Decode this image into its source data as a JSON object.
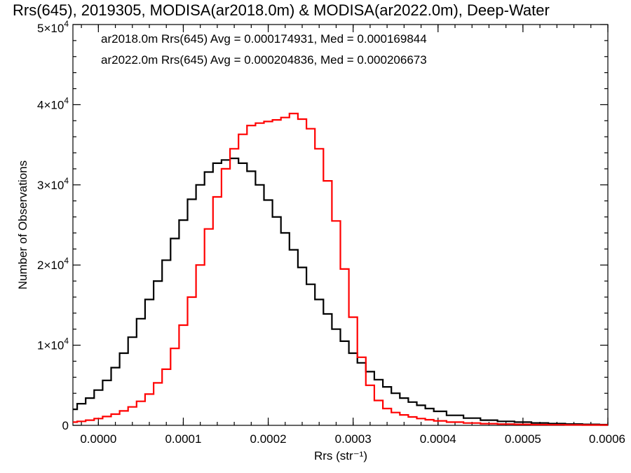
{
  "chart_data": {
    "type": "line",
    "title": "Rrs(645), 2019305, MODISA(ar2018.0m) & MODISA(ar2022.0m), Deep-Water",
    "xlabel": "Rrs (str⁻¹)",
    "ylabel": "Number of Observations",
    "xlim": [
      -3e-05,
      0.0006
    ],
    "ylim": [
      0,
      50000
    ],
    "grid": false,
    "legend_position": "top-left",
    "x_ticks": [
      {
        "value": 0.0,
        "label": "0.0000"
      },
      {
        "value": 0.0001,
        "label": "0.0001"
      },
      {
        "value": 0.0002,
        "label": "0.0002"
      },
      {
        "value": 0.0003,
        "label": "0.0003"
      },
      {
        "value": 0.0004,
        "label": "0.0004"
      },
      {
        "value": 0.0005,
        "label": "0.0005"
      },
      {
        "value": 0.0006,
        "label": "0.0006"
      }
    ],
    "y_ticks": [
      {
        "value": 0,
        "base": "0",
        "exp": ""
      },
      {
        "value": 10000,
        "base": "1×10",
        "exp": "4"
      },
      {
        "value": 20000,
        "base": "2×10",
        "exp": "4"
      },
      {
        "value": 30000,
        "base": "3×10",
        "exp": "4"
      },
      {
        "value": 40000,
        "base": "4×10",
        "exp": "4"
      },
      {
        "value": 50000,
        "base": "5×10",
        "exp": "4"
      }
    ],
    "series": [
      {
        "name": "ar2018.0m Rrs(645) Avg = 0.000174931, Med = 0.000169844",
        "color": "#000000",
        "points": [
          [
            -3e-05,
            2000
          ],
          [
            -2e-05,
            2700
          ],
          [
            -1e-05,
            3400
          ],
          [
            0.0,
            4400
          ],
          [
            1e-05,
            5600
          ],
          [
            2e-05,
            7200
          ],
          [
            3e-05,
            9000
          ],
          [
            4e-05,
            11000
          ],
          [
            5e-05,
            13300
          ],
          [
            6e-05,
            15700
          ],
          [
            7e-05,
            18000
          ],
          [
            8e-05,
            20600
          ],
          [
            9e-05,
            23300
          ],
          [
            0.0001,
            25600
          ],
          [
            0.00011,
            28200
          ],
          [
            0.00012,
            30000
          ],
          [
            0.00013,
            31600
          ],
          [
            0.00014,
            32700
          ],
          [
            0.00015,
            33100
          ],
          [
            0.00016,
            33300
          ],
          [
            0.00017,
            32700
          ],
          [
            0.00018,
            31700
          ],
          [
            0.00019,
            30000
          ],
          [
            0.0002,
            28100
          ],
          [
            0.00021,
            26000
          ],
          [
            0.00022,
            24000
          ],
          [
            0.00023,
            21900
          ],
          [
            0.00024,
            19700
          ],
          [
            0.00025,
            17600
          ],
          [
            0.00026,
            15700
          ],
          [
            0.00027,
            13900
          ],
          [
            0.00028,
            12000
          ],
          [
            0.00029,
            10500
          ],
          [
            0.0003,
            9000
          ],
          [
            0.00031,
            7800
          ],
          [
            0.00032,
            6700
          ],
          [
            0.00033,
            5700
          ],
          [
            0.00034,
            4800
          ],
          [
            0.00035,
            4000
          ],
          [
            0.00036,
            3400
          ],
          [
            0.00037,
            2900
          ],
          [
            0.00038,
            2500
          ],
          [
            0.00039,
            2100
          ],
          [
            0.0004,
            1750
          ],
          [
            0.00042,
            1250
          ],
          [
            0.00044,
            900
          ],
          [
            0.00046,
            650
          ],
          [
            0.00048,
            500
          ],
          [
            0.0005,
            400
          ],
          [
            0.00052,
            300
          ],
          [
            0.00054,
            220
          ],
          [
            0.00056,
            170
          ],
          [
            0.00058,
            120
          ],
          [
            0.0006,
            90
          ]
        ]
      },
      {
        "name": "ar2022.0m Rrs(645) Avg = 0.000204836, Med = 0.000206673",
        "color": "#ff0000",
        "points": [
          [
            -3e-05,
            400
          ],
          [
            -2e-05,
            500
          ],
          [
            -1e-05,
            650
          ],
          [
            0.0,
            850
          ],
          [
            1e-05,
            1100
          ],
          [
            2e-05,
            1400
          ],
          [
            3e-05,
            1800
          ],
          [
            4e-05,
            2300
          ],
          [
            5e-05,
            3000
          ],
          [
            6e-05,
            3900
          ],
          [
            7e-05,
            5300
          ],
          [
            8e-05,
            7000
          ],
          [
            9e-05,
            9600
          ],
          [
            0.0001,
            12500
          ],
          [
            0.00011,
            16000
          ],
          [
            0.00012,
            20000
          ],
          [
            0.00013,
            24500
          ],
          [
            0.00014,
            28500
          ],
          [
            0.00015,
            32000
          ],
          [
            0.00016,
            34500
          ],
          [
            0.00017,
            36300
          ],
          [
            0.00018,
            37400
          ],
          [
            0.00019,
            37700
          ],
          [
            0.0002,
            37900
          ],
          [
            0.00021,
            38100
          ],
          [
            0.00022,
            38400
          ],
          [
            0.00023,
            38900
          ],
          [
            0.00024,
            38200
          ],
          [
            0.00025,
            37000
          ],
          [
            0.00026,
            34500
          ],
          [
            0.00027,
            30500
          ],
          [
            0.00028,
            25500
          ],
          [
            0.00029,
            19500
          ],
          [
            0.0003,
            13500
          ],
          [
            0.00031,
            8500
          ],
          [
            0.00032,
            5000
          ],
          [
            0.00033,
            3100
          ],
          [
            0.00034,
            2100
          ],
          [
            0.00035,
            1600
          ],
          [
            0.00036,
            1300
          ],
          [
            0.00037,
            1050
          ],
          [
            0.00038,
            850
          ],
          [
            0.00039,
            700
          ],
          [
            0.0004,
            560
          ],
          [
            0.00042,
            400
          ],
          [
            0.00044,
            290
          ],
          [
            0.00046,
            210
          ],
          [
            0.00048,
            160
          ],
          [
            0.0005,
            120
          ],
          [
            0.00052,
            90
          ],
          [
            0.00054,
            70
          ],
          [
            0.00056,
            55
          ],
          [
            0.00058,
            45
          ],
          [
            0.0006,
            40
          ]
        ]
      }
    ]
  }
}
